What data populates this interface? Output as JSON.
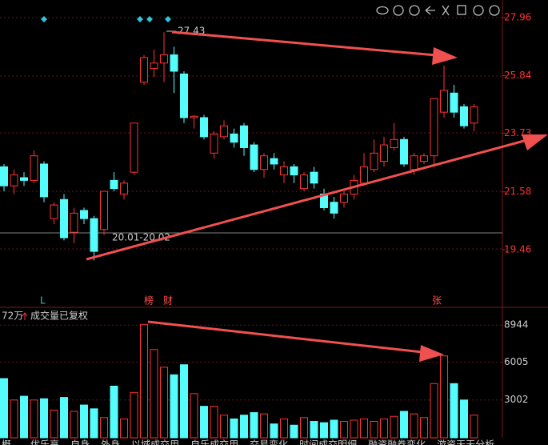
{
  "chart_data": [
    {
      "type": "candlestick",
      "up_color": "#ff3232",
      "down_color": "#54fcfc",
      "ylim": [
        17.32,
        28.61
      ],
      "yticks": [
        27.96,
        25.84,
        23.73,
        21.58,
        19.46
      ],
      "open": [
        22.5,
        21.8,
        22.1,
        22.0,
        22.6,
        20.6,
        21.3,
        20.1,
        20.9,
        20.6,
        20.2,
        22.0,
        21.5,
        22.3,
        25.6,
        26.1,
        26.3,
        26.6,
        25.9,
        24.3,
        24.3,
        23.0,
        23.6,
        23.7,
        24.0,
        23.3,
        22.4,
        22.8,
        22.2,
        22.5,
        21.7,
        22.3,
        21.5,
        21.2,
        21.2,
        21.5,
        21.9,
        22.4,
        22.7,
        23.2,
        23.5,
        22.4,
        22.7,
        22.9,
        24.5,
        25.2,
        24.7,
        24.1
      ],
      "close": [
        21.8,
        22.2,
        22.0,
        22.9,
        21.4,
        21.1,
        19.9,
        20.8,
        20.6,
        19.4,
        21.6,
        21.7,
        21.9,
        24.1,
        26.5,
        26.3,
        26.6,
        26.0,
        24.3,
        24.35,
        23.6,
        23.7,
        24.0,
        23.4,
        23.2,
        22.4,
        22.9,
        22.6,
        22.5,
        22.2,
        22.2,
        21.9,
        21.0,
        20.8,
        21.5,
        22.0,
        22.5,
        23.0,
        23.3,
        23.5,
        22.6,
        22.9,
        22.9,
        25.0,
        25.3,
        24.5,
        24.0,
        24.7
      ],
      "high": [
        22.6,
        22.4,
        22.3,
        23.1,
        22.7,
        21.2,
        21.5,
        21.0,
        21.0,
        20.7,
        21.6,
        22.3,
        22.0,
        24.1,
        26.6,
        26.8,
        27.43,
        26.9,
        26.0,
        24.4,
        24.4,
        23.8,
        24.2,
        23.9,
        24.1,
        23.4,
        23.0,
        23.0,
        22.7,
        22.6,
        22.3,
        22.5,
        21.7,
        21.4,
        21.6,
        22.2,
        23.0,
        23.5,
        23.6,
        24.1,
        23.6,
        23.0,
        23.0,
        25.0,
        26.2,
        25.5,
        24.8,
        24.8
      ],
      "low": [
        21.6,
        21.5,
        21.8,
        21.9,
        21.2,
        20.4,
        19.8,
        19.7,
        20.4,
        19.07,
        20.0,
        21.6,
        21.3,
        22.2,
        25.5,
        25.8,
        25.6,
        25.2,
        24.1,
        23.9,
        23.5,
        22.8,
        23.5,
        23.2,
        22.9,
        22.3,
        22.1,
        22.4,
        21.9,
        21.9,
        21.6,
        21.7,
        20.9,
        20.6,
        21.0,
        21.3,
        21.8,
        22.3,
        22.5,
        23.1,
        22.5,
        22.2,
        22.6,
        22.5,
        24.3,
        24.3,
        23.9,
        23.8
      ],
      "annotations": {
        "high_label": "27.43",
        "range_label": "20.01-20.02",
        "mark_l": "L",
        "mark_bang": "榜",
        "mark_cai": "财",
        "mark_zhang": "张"
      }
    },
    {
      "type": "bar",
      "unit_label": "72万",
      "title": "成交量已复权",
      "ylim": [
        0,
        10100
      ],
      "yticks": [
        8944,
        6005,
        3002
      ],
      "values": [
        4700,
        3000,
        3300,
        3000,
        3100,
        2200,
        3200,
        2100,
        2600,
        2300,
        1600,
        4100,
        1500,
        3600,
        9000,
        7000,
        5600,
        5000,
        5800,
        3500,
        2500,
        2500,
        1800,
        1500,
        1800,
        2000,
        1900,
        1100,
        1500,
        1000,
        1600,
        1300,
        1200,
        1400,
        1300,
        1400,
        1500,
        1300,
        1500,
        1700,
        2100,
        1900,
        1600,
        4300,
        6500,
        4300,
        3000,
        1800
      ]
    }
  ],
  "tabs": [
    "概",
    "优乐高",
    "自身",
    "外身",
    "以域成交用",
    "自乐成交用",
    "交易变化",
    "时间成交明细",
    "融资融券变化",
    "游资天天分析"
  ]
}
